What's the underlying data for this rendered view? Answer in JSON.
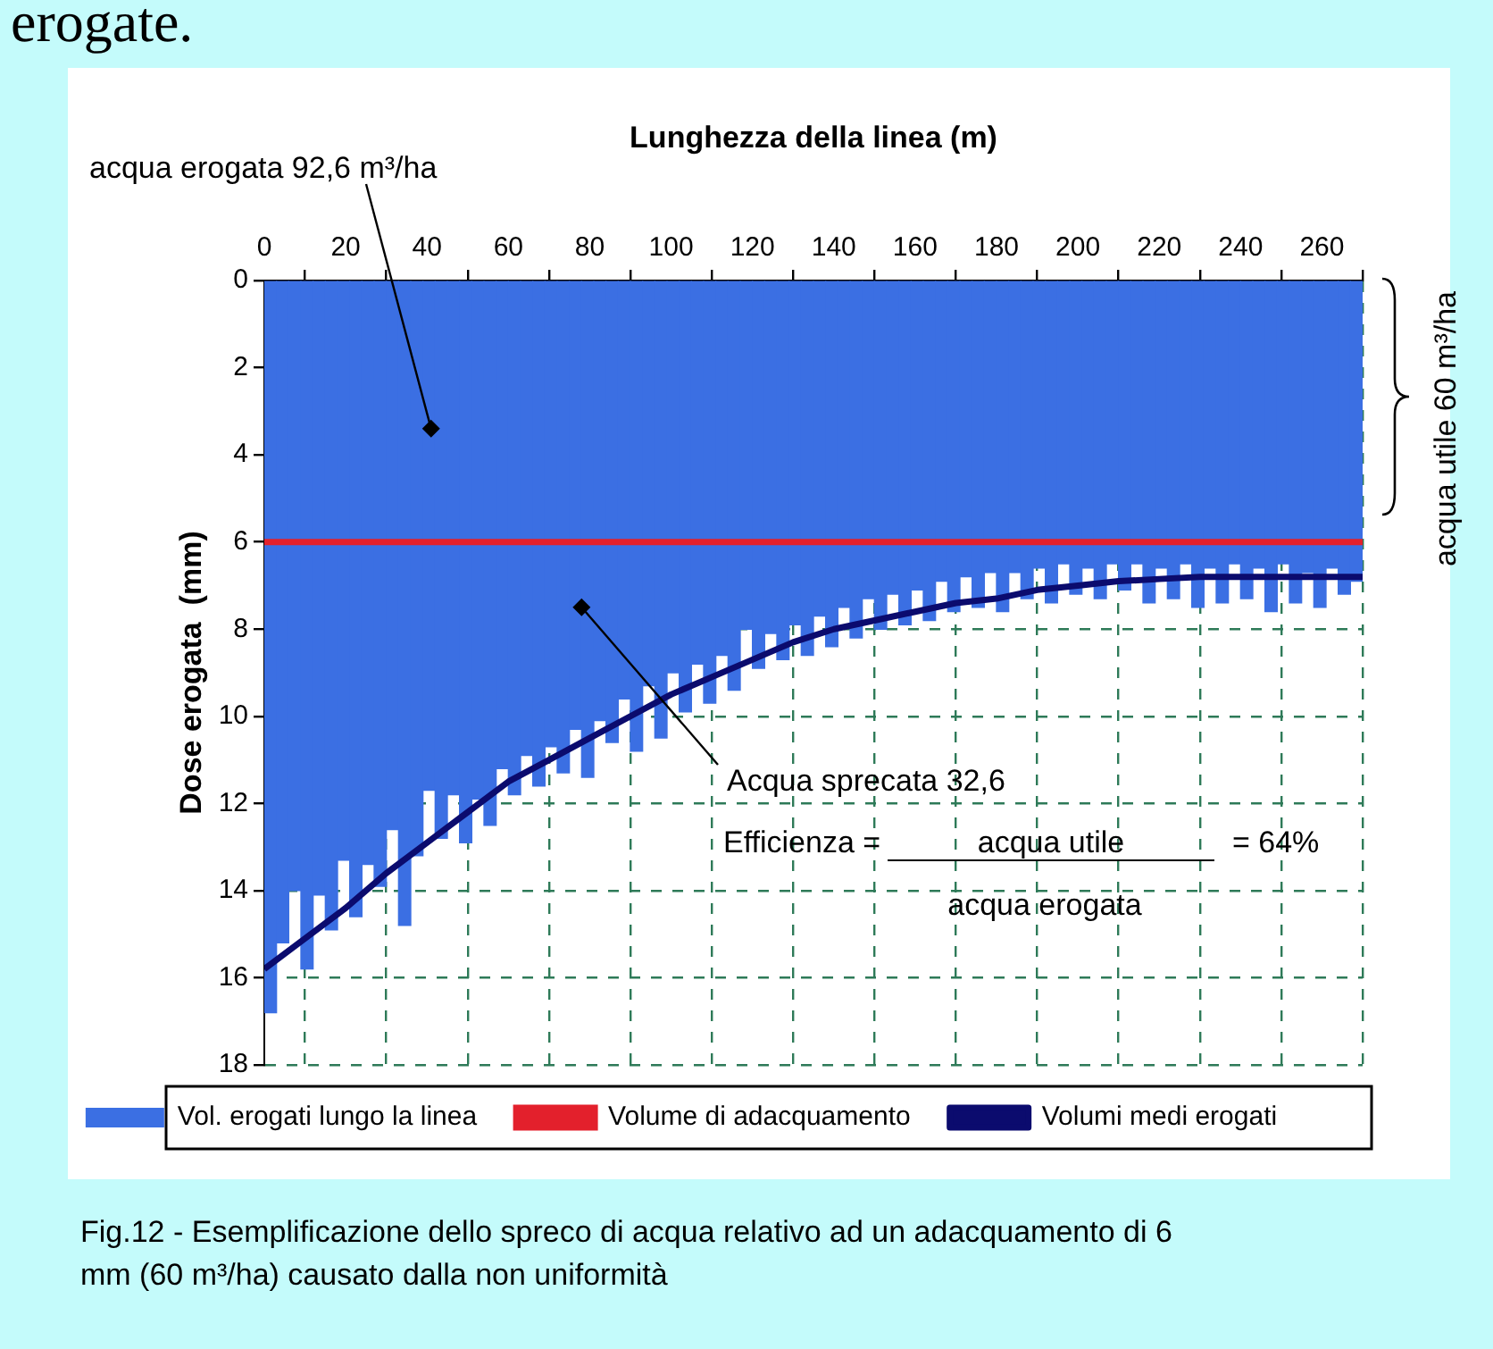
{
  "chart_data": {
    "type": "bar",
    "xlabel": "Lunghezza della linea (m)",
    "ylabel": "Dose erogata  (mm)",
    "xlim": [
      0,
      270
    ],
    "xticks": [
      0,
      20,
      40,
      60,
      80,
      100,
      120,
      140,
      160,
      180,
      200,
      220,
      240,
      260
    ],
    "ylim": [
      18,
      0
    ],
    "yticks": [
      0,
      2,
      4,
      6,
      8,
      10,
      12,
      14,
      16,
      18
    ],
    "grid": true,
    "legend": "bottom",
    "marker": "none",
    "series": [
      {
        "name": "Vol. erogati lungo la linea",
        "color": "#3b6fe3",
        "x": [
          1.5,
          4.5,
          7.5,
          10.5,
          13.5,
          16.5,
          19.5,
          22.5,
          25.5,
          28.5,
          31.5,
          34.5,
          37.5,
          40.5,
          43.5,
          46.5,
          49.5,
          52.5,
          55.5,
          58.5,
          61.5,
          64.5,
          67.5,
          70.5,
          73.5,
          76.5,
          79.5,
          82.5,
          85.5,
          88.5,
          91.5,
          94.5,
          97.5,
          100.5,
          103.5,
          106.5,
          109.5,
          112.5,
          115.5,
          118.5,
          121.5,
          124.5,
          127.5,
          130.5,
          133.5,
          136.5,
          139.5,
          142.5,
          145.5,
          148.5,
          151.5,
          154.5,
          157.5,
          160.5,
          163.5,
          166.5,
          169.5,
          172.5,
          175.5,
          178.5,
          181.5,
          184.5,
          187.5,
          190.5,
          193.5,
          196.5,
          199.5,
          202.5,
          205.5,
          208.5,
          211.5,
          214.5,
          217.5,
          220.5,
          223.5,
          226.5,
          229.5,
          232.5,
          235.5,
          238.5,
          241.5,
          244.5,
          247.5,
          250.5,
          253.5,
          256.5,
          259.5,
          262.5,
          265.5,
          268.5
        ],
        "values": [
          16.8,
          15.2,
          14.0,
          15.8,
          14.1,
          14.9,
          13.3,
          14.6,
          13.4,
          13.9,
          12.6,
          14.8,
          13.2,
          11.7,
          12.8,
          11.8,
          12.9,
          11.9,
          12.5,
          11.2,
          11.8,
          10.9,
          11.6,
          10.7,
          11.3,
          10.3,
          11.4,
          10.1,
          10.6,
          9.6,
          10.8,
          9.3,
          10.5,
          9.0,
          9.9,
          8.8,
          9.7,
          8.6,
          9.4,
          8.0,
          8.9,
          8.1,
          8.7,
          7.9,
          8.6,
          7.7,
          8.4,
          7.5,
          8.2,
          7.3,
          8.0,
          7.2,
          7.9,
          7.1,
          7.8,
          6.9,
          7.6,
          6.8,
          7.5,
          6.7,
          7.6,
          6.7,
          7.3,
          6.6,
          7.4,
          6.5,
          7.2,
          6.6,
          7.3,
          6.5,
          7.1,
          6.5,
          7.4,
          6.6,
          7.3,
          6.5,
          7.5,
          6.6,
          7.4,
          6.5,
          7.3,
          6.6,
          7.6,
          6.5,
          7.4,
          6.7,
          7.5,
          6.6,
          7.2,
          6.9
        ]
      },
      {
        "name": "Volumi medi erogati",
        "type": "line",
        "color": "#0b0b6e",
        "line_style": "solid",
        "x": [
          0,
          10,
          20,
          30,
          40,
          50,
          60,
          70,
          80,
          90,
          100,
          110,
          120,
          130,
          140,
          150,
          160,
          170,
          180,
          190,
          200,
          210,
          220,
          230,
          240,
          250,
          260,
          270
        ],
        "values": [
          15.8,
          15.1,
          14.4,
          13.6,
          12.9,
          12.2,
          11.5,
          11.0,
          10.5,
          10.0,
          9.5,
          9.1,
          8.7,
          8.3,
          8.0,
          7.8,
          7.6,
          7.4,
          7.3,
          7.1,
          7.0,
          6.9,
          6.85,
          6.8,
          6.8,
          6.8,
          6.8,
          6.8
        ]
      }
    ],
    "ref_lines": [
      {
        "axis": "y",
        "value": 6,
        "label": "Volume di adacquamento",
        "color": "#e3202c"
      }
    ],
    "annotations": [
      "erogate.",
      {
        "text": "acqua erogata 92,6 m³/ha",
        "x": 41,
        "y": 3.4
      },
      {
        "text": "Acqua sprecata 32,6",
        "x": 78,
        "y": 7.5
      },
      "acqua utile 60 m³/ha",
      "Efficienza =",
      "acqua utile",
      "= 64%",
      "acqua erogata",
      "Fig.12  -  Esemplificazione dello spreco di acqua relativo ad un adacquamento di 6 mm (60 m³/ha) causato dalla non uniformità"
    ]
  }
}
